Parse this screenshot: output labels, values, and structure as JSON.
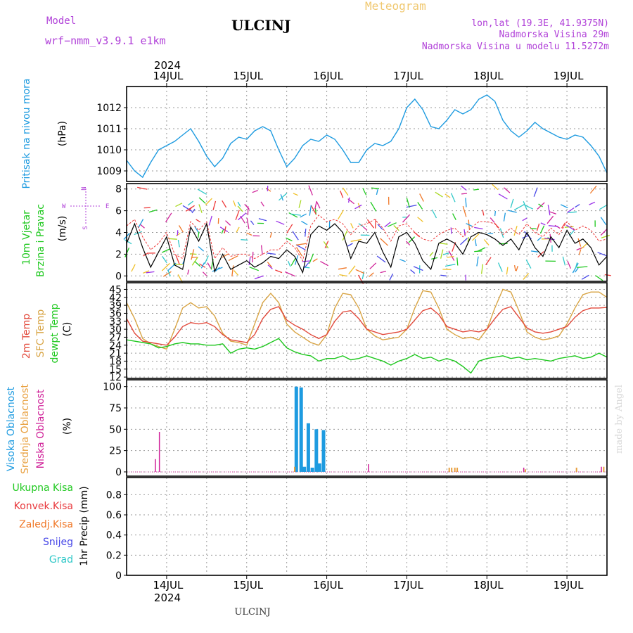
{
  "header": {
    "model_label": "Model",
    "model_name": "wrf−nmm_v3.9.1  e1km",
    "title": "ULCINJ",
    "subtitle": "Meteogram",
    "coords": "lon,lat (19.3E, 41.9375N)",
    "elevation": "Nadmorska Visina 29m",
    "model_elevation": "Nadmorska Visina u modelu 11.5272m",
    "footer": "ULCINJ",
    "watermark": "made by Angel",
    "year": "2024"
  },
  "colors": {
    "pressure": "#1e9be0",
    "wind_speed": "#000000",
    "gust": "#ee3a3a",
    "t2m": "#e24a3c",
    "sfc": "#d8a444",
    "dewpt": "#1ec81e",
    "high_cloud": "#1e9be0",
    "mid_cloud": "#e8a040",
    "low_cloud": "#d0249a",
    "total_precip": "#1ec81e",
    "convective": "#e8383c",
    "frozen": "#f07828",
    "snow": "#4848e8",
    "graupel": "#30c8c8",
    "label_purple": "#b040d8",
    "subtitle": "#f0c870"
  },
  "x_axis": {
    "day_labels": [
      "14JUL",
      "15JUL",
      "16JUL",
      "17JUL",
      "18JUL",
      "19JUL"
    ]
  },
  "panels": {
    "pressure": {
      "label": "Pritisak na nivou mora",
      "unit": "(hPa)"
    },
    "wind": {
      "label1": "10m Vjetar",
      "label2": "Brzina i Pravac",
      "unit": "(m/s)",
      "compass_n": "N",
      "compass_w": "W",
      "compass_e": "E",
      "compass_s": "S"
    },
    "temp": {
      "label1": "2m Temp",
      "label2": "SFC Temp",
      "label3": "dewpt Temp",
      "unit": "(C)"
    },
    "cloud": {
      "label1": "Visoka Oblacnost",
      "label2": "Srednja Oblacnost",
      "label3": "Niska Oblacnost",
      "unit": "(%)"
    },
    "precip": {
      "legend": [
        "Ukupna  Kisa",
        "Konvek.Kisa",
        "Zaledj.Kisa",
        "Snijeg",
        "Grad"
      ],
      "unit": "1hr Precip (mm)"
    }
  },
  "chart_data": [
    {
      "type": "line",
      "name": "pressure",
      "x": [
        13.5,
        13.6,
        13.7,
        13.8,
        13.9,
        14.0,
        14.1,
        14.2,
        14.3,
        14.4,
        14.5,
        14.6,
        14.7,
        14.8,
        14.9,
        15.0,
        15.1,
        15.2,
        15.3,
        15.4,
        15.5,
        15.6,
        15.7,
        15.8,
        15.9,
        16.0,
        16.1,
        16.2,
        16.3,
        16.4,
        16.5,
        16.6,
        16.7,
        16.8,
        16.9,
        17.0,
        17.1,
        17.2,
        17.3,
        17.4,
        17.5,
        17.6,
        17.7,
        17.8,
        17.9,
        18.0,
        18.1,
        18.2,
        18.3,
        18.4,
        18.5,
        18.6,
        18.7,
        18.8,
        18.9,
        19.0,
        19.1,
        19.2,
        19.3,
        19.4,
        19.5
      ],
      "values": [
        1009.5,
        1009.0,
        1008.7,
        1009.4,
        1010.0,
        1010.2,
        1010.4,
        1010.7,
        1011.0,
        1010.4,
        1009.7,
        1009.2,
        1009.6,
        1010.3,
        1010.6,
        1010.5,
        1010.9,
        1011.1,
        1010.9,
        1010.0,
        1009.2,
        1009.6,
        1010.2,
        1010.5,
        1010.4,
        1010.7,
        1010.5,
        1010.0,
        1009.4,
        1009.4,
        1010.0,
        1010.3,
        1010.2,
        1010.4,
        1011.0,
        1012.0,
        1012.4,
        1011.9,
        1011.1,
        1011.0,
        1011.4,
        1011.9,
        1011.7,
        1011.9,
        1012.4,
        1012.6,
        1012.3,
        1011.4,
        1010.9,
        1010.6,
        1010.9,
        1011.3,
        1011.0,
        1010.8,
        1010.6,
        1010.5,
        1010.7,
        1010.6,
        1010.2,
        1009.7,
        1008.9
      ],
      "ylim": [
        1008.5,
        1013.0
      ],
      "yticks": [
        1009,
        1010,
        1011,
        1012
      ]
    },
    {
      "type": "line",
      "name": "wind",
      "x": [
        13.5,
        13.6,
        13.7,
        13.8,
        13.9,
        14.0,
        14.1,
        14.2,
        14.3,
        14.4,
        14.5,
        14.6,
        14.7,
        14.8,
        14.9,
        15.0,
        15.1,
        15.2,
        15.3,
        15.4,
        15.5,
        15.6,
        15.7,
        15.8,
        15.9,
        16.0,
        16.1,
        16.2,
        16.3,
        16.4,
        16.5,
        16.6,
        16.7,
        16.8,
        16.9,
        17.0,
        17.1,
        17.2,
        17.3,
        17.4,
        17.5,
        17.6,
        17.7,
        17.8,
        17.9,
        18.0,
        18.1,
        18.2,
        18.3,
        18.4,
        18.5,
        18.6,
        18.7,
        18.8,
        18.9,
        19.0,
        19.1,
        19.2,
        19.3,
        19.4,
        19.5
      ],
      "speed": [
        3.0,
        4.8,
        2.6,
        0.8,
        2.2,
        3.6,
        1.0,
        0.6,
        4.5,
        3.2,
        4.8,
        0.4,
        2.0,
        0.6,
        1.0,
        1.4,
        0.8,
        1.2,
        1.8,
        1.6,
        2.4,
        1.8,
        0.3,
        3.8,
        4.6,
        4.2,
        4.8,
        4.0,
        1.6,
        3.2,
        3.0,
        4.0,
        2.2,
        0.8,
        3.6,
        4.0,
        3.0,
        1.4,
        0.6,
        3.0,
        3.4,
        3.0,
        2.0,
        3.6,
        4.0,
        3.8,
        3.4,
        2.8,
        3.4,
        2.4,
        4.0,
        2.6,
        1.8,
        3.6,
        2.6,
        4.2,
        3.0,
        3.4,
        2.6,
        1.0,
        1.8
      ],
      "gust": [
        4.6,
        5.2,
        3.6,
        2.4,
        3.0,
        4.0,
        2.0,
        1.6,
        5.0,
        4.2,
        5.0,
        1.6,
        2.6,
        1.8,
        2.0,
        2.0,
        1.6,
        2.0,
        2.4,
        2.4,
        3.2,
        2.6,
        1.4,
        4.6,
        5.6,
        5.0,
        5.2,
        4.8,
        3.8,
        4.6,
        4.8,
        5.2,
        4.4,
        3.2,
        4.6,
        4.8,
        4.0,
        3.4,
        3.2,
        3.8,
        4.2,
        4.4,
        3.6,
        4.4,
        5.0,
        5.0,
        4.8,
        3.8,
        4.4,
        3.8,
        4.8,
        4.0,
        3.6,
        4.4,
        3.8,
        5.0,
        4.2,
        4.6,
        4.2,
        3.2,
        3.4
      ],
      "ylim": [
        -0.5,
        8.5
      ],
      "yticks": [
        0,
        2,
        4,
        6,
        8
      ]
    },
    {
      "type": "line",
      "name": "temperature",
      "x": [
        13.5,
        13.6,
        13.7,
        13.8,
        13.9,
        14.0,
        14.1,
        14.2,
        14.3,
        14.4,
        14.5,
        14.6,
        14.7,
        14.8,
        14.9,
        15.0,
        15.1,
        15.2,
        15.3,
        15.4,
        15.5,
        15.6,
        15.7,
        15.8,
        15.9,
        16.0,
        16.1,
        16.2,
        16.3,
        16.4,
        16.5,
        16.6,
        16.7,
        16.8,
        16.9,
        17.0,
        17.1,
        17.2,
        17.3,
        17.4,
        17.5,
        17.6,
        17.7,
        17.8,
        17.9,
        18.0,
        18.1,
        18.2,
        18.3,
        18.4,
        18.5,
        18.6,
        18.7,
        18.8,
        18.9,
        19.0,
        19.1,
        19.2,
        19.3,
        19.4,
        19.5
      ],
      "t2m": [
        34.0,
        28.5,
        25.5,
        25.0,
        24.5,
        24.0,
        27.0,
        31.0,
        32.5,
        32.0,
        32.5,
        31.0,
        28.0,
        26.0,
        25.5,
        25.0,
        28.0,
        34.0,
        37.5,
        38.5,
        33.5,
        31.5,
        30.0,
        28.0,
        26.5,
        28.0,
        33.0,
        36.5,
        37.0,
        34.0,
        30.0,
        29.0,
        28.0,
        28.5,
        29.0,
        30.0,
        33.5,
        37.0,
        38.0,
        35.5,
        31.0,
        30.0,
        29.0,
        29.5,
        29.0,
        30.0,
        34.0,
        37.5,
        38.5,
        34.5,
        30.5,
        29.0,
        28.5,
        29.0,
        30.0,
        31.0,
        34.5,
        37.0,
        38.0,
        38.0,
        38.2
      ],
      "sfc": [
        40.0,
        34.0,
        26.5,
        24.5,
        23.5,
        22.5,
        30.0,
        38.0,
        40.0,
        38.0,
        38.5,
        35.0,
        28.5,
        25.5,
        25.0,
        24.0,
        32.0,
        40.0,
        43.5,
        40.0,
        32.0,
        29.0,
        27.0,
        25.0,
        24.0,
        28.0,
        38.0,
        43.5,
        43.0,
        38.0,
        30.0,
        27.5,
        26.0,
        26.5,
        27.0,
        30.0,
        38.0,
        44.5,
        44.0,
        38.0,
        30.0,
        28.0,
        26.5,
        27.0,
        26.0,
        30.0,
        38.0,
        45.0,
        44.0,
        37.0,
        29.0,
        27.0,
        26.0,
        26.5,
        27.5,
        32.0,
        38.0,
        43.0,
        44.0,
        44.0,
        42.0
      ],
      "dewpt": [
        26.0,
        25.5,
        25.0,
        24.5,
        23.0,
        23.5,
        24.5,
        25.0,
        24.5,
        24.5,
        24.0,
        24.0,
        24.5,
        21.0,
        22.5,
        23.0,
        22.5,
        23.5,
        25.0,
        26.5,
        23.0,
        21.5,
        20.5,
        20.0,
        18.0,
        19.0,
        19.0,
        20.0,
        18.5,
        19.0,
        20.0,
        19.0,
        18.0,
        16.5,
        18.0,
        19.0,
        20.5,
        19.0,
        19.5,
        18.0,
        19.0,
        18.0,
        16.0,
        13.5,
        18.0,
        19.0,
        19.5,
        20.0,
        19.0,
        19.5,
        18.5,
        19.0,
        18.5,
        18.0,
        19.0,
        19.5,
        20.0,
        19.0,
        19.5,
        21.0,
        19.5
      ],
      "ylim": [
        11.5,
        47.5
      ],
      "yticks": [
        12,
        15,
        18,
        21,
        24,
        27,
        30,
        33,
        36,
        39,
        42,
        45
      ]
    },
    {
      "type": "bar",
      "name": "cloud",
      "high": [
        [
          15.62,
          100
        ],
        [
          15.68,
          99
        ],
        [
          15.72,
          6
        ],
        [
          15.77,
          57
        ],
        [
          15.82,
          5
        ],
        [
          15.87,
          50
        ],
        [
          15.91,
          10
        ],
        [
          15.96,
          49
        ]
      ],
      "mid": [
        [
          15.6,
          6
        ],
        [
          17.53,
          5
        ],
        [
          17.56,
          5
        ],
        [
          17.6,
          5
        ],
        [
          17.63,
          5
        ],
        [
          18.48,
          3
        ],
        [
          19.12,
          5
        ],
        [
          19.46,
          6
        ]
      ],
      "low": [
        [
          13.86,
          15
        ],
        [
          13.91,
          47
        ],
        [
          16.52,
          9
        ],
        [
          18.46,
          5
        ],
        [
          19.43,
          6
        ]
      ],
      "ylim": [
        -5,
        108
      ],
      "yticks": [
        0,
        25,
        50,
        75,
        100
      ]
    },
    {
      "type": "bar",
      "name": "precip_1hr",
      "values": [],
      "ylim": [
        0,
        0.97
      ],
      "yticks": [
        0,
        0.2,
        0.4,
        0.6,
        0.8
      ]
    }
  ]
}
